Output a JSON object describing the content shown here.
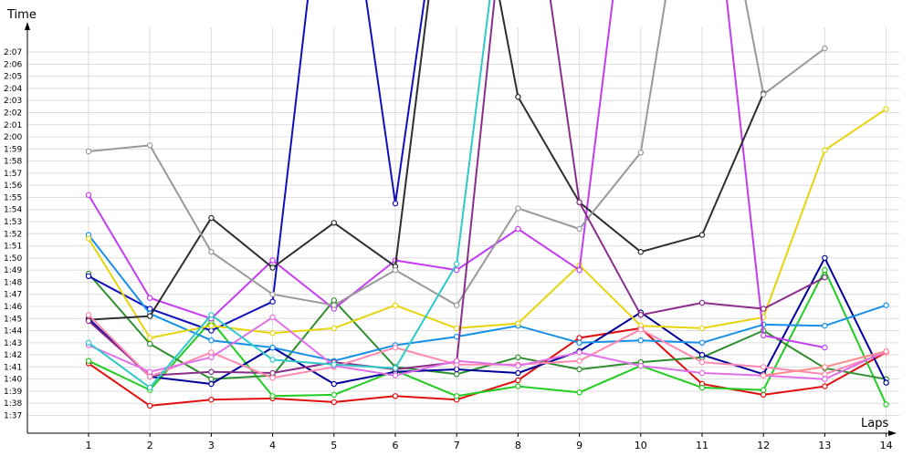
{
  "chart_data": {
    "type": "line",
    "title": "",
    "xlabel": "Laps",
    "ylabel": "Time",
    "x": [
      1,
      2,
      3,
      4,
      5,
      6,
      7,
      8,
      9,
      10,
      11,
      12,
      13,
      14
    ],
    "y_ticks": [
      "1:37",
      "1:38",
      "1:39",
      "1:40",
      "1:41",
      "1:42",
      "1:43",
      "1:44",
      "1:45",
      "1:46",
      "1:47",
      "1:48",
      "1:49",
      "1:50",
      "1:51",
      "1:52",
      "1:53",
      "1:54",
      "1:55",
      "1:56",
      "1:57",
      "1:58",
      "1:59",
      "2:00",
      "2:01",
      "2:02",
      "2:03",
      "2:04",
      "2:05",
      "2:06",
      "2:07"
    ],
    "x_ticks": [
      "1",
      "2",
      "3",
      "4",
      "5",
      "6",
      "7",
      "8",
      "9",
      "10",
      "11",
      "12",
      "13",
      "14"
    ],
    "ylim_seconds": [
      97,
      127
    ],
    "y_unit": "seconds (1:37 = 97 s)",
    "grid": true,
    "marker": "open-circle",
    "series": [
      {
        "color": "#e01010",
        "values": [
          101.3,
          97.8,
          98.3,
          98.4,
          98.1,
          98.6,
          98.3,
          99.9,
          103.4,
          104.2,
          99.6,
          98.7,
          99.4,
          102.2
        ]
      },
      {
        "color": "#22cc22",
        "values": [
          101.5,
          99.1,
          104.8,
          98.6,
          98.7,
          100.7,
          98.6,
          99.4,
          98.9,
          101.1,
          99.3,
          99.1,
          109.0,
          97.9
        ]
      },
      {
        "color": "#2f8f2f",
        "values": [
          108.7,
          102.9,
          100.0,
          100.3,
          106.5,
          101.0,
          100.4,
          101.8,
          100.8,
          101.4,
          101.8,
          104.0,
          100.9,
          100.0
        ]
      },
      {
        "color": "#000099",
        "values": [
          105.0,
          100.2,
          99.6,
          102.6,
          99.6,
          100.6,
          100.8,
          100.5,
          102.3,
          105.5,
          102.0,
          100.4,
          110.0,
          99.7
        ]
      },
      {
        "color": "#1010bb",
        "values": [
          108.5,
          105.8,
          104.0,
          106.4,
          150.0,
          114.5,
          150.0,
          null,
          null,
          null,
          null,
          null,
          null,
          null
        ]
      },
      {
        "color": "#1890e8",
        "values": [
          111.9,
          105.4,
          103.2,
          102.6,
          101.5,
          102.8,
          103.5,
          104.4,
          103.0,
          103.2,
          103.0,
          104.5,
          104.4,
          106.1
        ]
      },
      {
        "color": "#e6d40e",
        "values": [
          111.6,
          103.4,
          104.4,
          103.8,
          104.2,
          106.1,
          104.2,
          104.6,
          109.4,
          104.4,
          104.2,
          105.1,
          118.9,
          122.3
        ]
      },
      {
        "color": "#c43cf0",
        "values": [
          115.2,
          106.7,
          105.0,
          109.8,
          105.8,
          109.8,
          109.0,
          112.4,
          109.0,
          150.0,
          null,
          null,
          null,
          null
        ]
      },
      {
        "color": "#c43cf0",
        "values": [
          null,
          null,
          null,
          null,
          null,
          null,
          null,
          null,
          null,
          null,
          150.0,
          103.6,
          102.6,
          null
        ]
      },
      {
        "color": "#2e2e2e",
        "values": [
          104.9,
          105.2,
          113.3,
          109.2,
          112.9,
          109.3,
          150.0,
          123.3,
          114.6,
          110.5,
          111.9,
          123.6,
          null,
          null
        ]
      },
      {
        "color": "#999999",
        "values": [
          118.8,
          119.3,
          110.5,
          107.0,
          106.1,
          109.0,
          106.1,
          114.1,
          112.4,
          118.7,
          150.0,
          123.5,
          127.3,
          null
        ]
      },
      {
        "color": "#8b2e8b",
        "values": [
          104.8,
          100.3,
          100.6,
          100.5,
          101.4,
          100.8,
          101.4,
          150.0,
          114.6,
          105.3,
          106.3,
          105.8,
          108.4,
          null
        ]
      },
      {
        "color": "#ff88b0",
        "values": [
          105.3,
          100.2,
          102.2,
          100.1,
          101.0,
          102.6,
          101.2,
          101.2,
          101.5,
          104.1,
          101.4,
          101.0,
          100.4,
          102.2
        ]
      },
      {
        "color": "#e070e8",
        "values": [
          102.8,
          100.6,
          101.8,
          105.1,
          101.1,
          100.3,
          101.5,
          101.1,
          102.2,
          101.1,
          100.5,
          100.3,
          100.0,
          102.3
        ]
      },
      {
        "color": "#30c8c8",
        "values": [
          103.0,
          99.3,
          105.3,
          101.6,
          101.2,
          100.9,
          109.5,
          150.0,
          null,
          null,
          null,
          null,
          null,
          null
        ]
      },
      {
        "color": "#ff8c8c",
        "values": [
          null,
          null,
          null,
          null,
          null,
          null,
          null,
          null,
          null,
          null,
          null,
          100.3,
          101.0,
          102.3
        ]
      }
    ]
  }
}
